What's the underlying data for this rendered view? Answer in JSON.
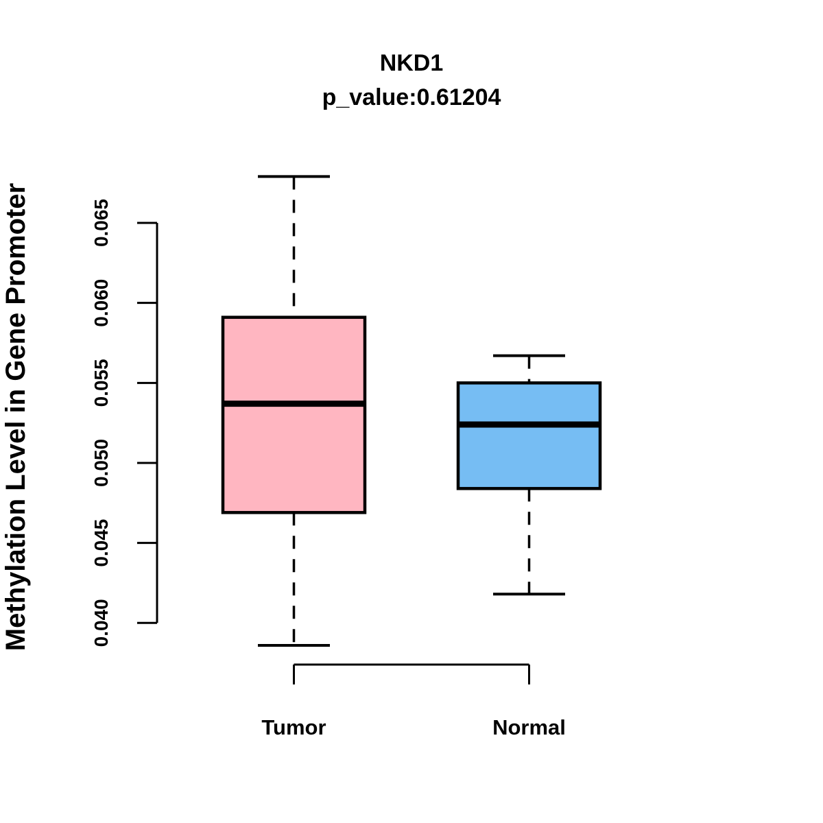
{
  "chart_data": {
    "type": "boxplot",
    "title": "NKD1",
    "subtitle": "p_value:0.61204",
    "ylabel": "Methylation Level in Gene Promoter",
    "xlabel": "",
    "y_axis": {
      "ticks": [
        0.04,
        0.045,
        0.05,
        0.055,
        0.06,
        0.065
      ],
      "tick_labels": [
        "0.040",
        "0.045",
        "0.050",
        "0.055",
        "0.060",
        "0.065"
      ],
      "axis_range": [
        0.04,
        0.065
      ]
    },
    "grid": "off",
    "legend": "none",
    "colors": {
      "tumor_fill": "#FFB6C1",
      "normal_fill": "#76BDF3",
      "stroke": "#000000",
      "background": "#FFFFFF"
    },
    "groups": [
      {
        "label": "Tumor",
        "fill_key": "tumor_fill",
        "whisker_low": 0.0386,
        "q1": 0.0469,
        "median": 0.0537,
        "q3": 0.0591,
        "whisker_high": 0.0679
      },
      {
        "label": "Normal",
        "fill_key": "normal_fill",
        "whisker_low": 0.0418,
        "q1": 0.0484,
        "median": 0.0524,
        "q3": 0.055,
        "whisker_high": 0.0567
      }
    ]
  }
}
